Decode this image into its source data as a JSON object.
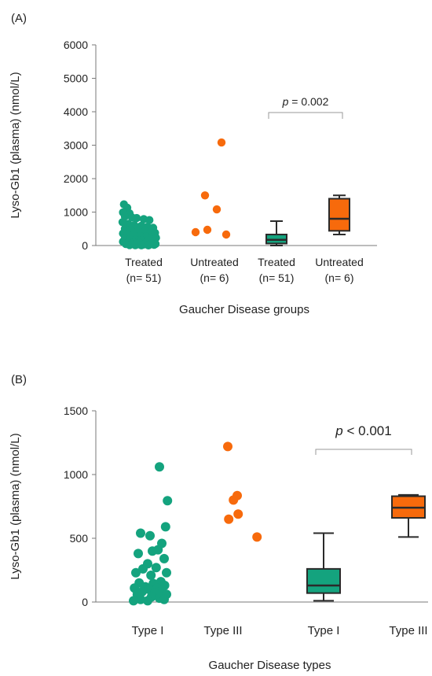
{
  "colors": {
    "treated": "#14a37e",
    "untreated": "#f76a0c",
    "axis": "#7a7a7a",
    "bracket": "#9a9a9a",
    "box_edge": "#2a2a2a"
  },
  "chart_data": [
    {
      "panel_label": "(A)",
      "type": "scatter+box",
      "ylabel": "Lyso-Gb1 (plasma) (nmol/L)",
      "xlabel": "Gaucher Disease groups",
      "ylim": [
        0,
        6000
      ],
      "yticks": [
        0,
        1000,
        2000,
        3000,
        4000,
        5000,
        6000
      ],
      "categories": [
        {
          "line1": "Treated",
          "line2": "(n= 51)"
        },
        {
          "line1": "Untreated",
          "line2": "(n= 6)"
        },
        {
          "line1": "Treated",
          "line2": "(n= 51)"
        },
        {
          "line1": "Untreated",
          "line2": "(n= 6)"
        }
      ],
      "scatter": [
        {
          "group": 0,
          "color_key": "treated",
          "points": [
            [
              -0.42,
              1230
            ],
            [
              -0.35,
              1130
            ],
            [
              -0.44,
              990
            ],
            [
              -0.3,
              960
            ],
            [
              -0.4,
              870
            ],
            [
              -0.25,
              840
            ],
            [
              -0.15,
              820
            ],
            [
              0.0,
              790
            ],
            [
              0.12,
              760
            ],
            [
              -0.45,
              700
            ],
            [
              -0.33,
              650
            ],
            [
              -0.2,
              610
            ],
            [
              -0.05,
              590
            ],
            [
              0.08,
              560
            ],
            [
              0.2,
              530
            ],
            [
              -0.4,
              500
            ],
            [
              -0.28,
              470
            ],
            [
              -0.12,
              450
            ],
            [
              0.03,
              430
            ],
            [
              0.15,
              400
            ],
            [
              0.24,
              380
            ],
            [
              -0.44,
              360
            ],
            [
              -0.34,
              340
            ],
            [
              -0.22,
              310
            ],
            [
              -0.08,
              290
            ],
            [
              0.05,
              270
            ],
            [
              0.18,
              250
            ],
            [
              0.26,
              230
            ],
            [
              -0.4,
              210
            ],
            [
              -0.3,
              190
            ],
            [
              -0.17,
              175
            ],
            [
              -0.04,
              160
            ],
            [
              0.09,
              145
            ],
            [
              0.21,
              130
            ],
            [
              -0.44,
              115
            ],
            [
              -0.33,
              100
            ],
            [
              -0.21,
              90
            ],
            [
              -0.09,
              80
            ],
            [
              0.04,
              70
            ],
            [
              0.16,
              60
            ],
            [
              0.25,
              50
            ],
            [
              -0.38,
              45
            ],
            [
              -0.26,
              40
            ],
            [
              -0.13,
              35
            ],
            [
              0.0,
              30
            ],
            [
              0.12,
              25
            ],
            [
              0.22,
              20
            ],
            [
              -0.3,
              15
            ],
            [
              -0.18,
              10
            ],
            [
              -0.05,
              8
            ],
            [
              0.1,
              5
            ]
          ]
        },
        {
          "group": 1,
          "color_key": "untreated",
          "points": [
            [
              0.15,
              3080
            ],
            [
              -0.2,
              1500
            ],
            [
              0.05,
              1080
            ],
            [
              -0.4,
              400
            ],
            [
              -0.15,
              470
            ],
            [
              0.25,
              330
            ]
          ]
        }
      ],
      "boxes": [
        {
          "group": 2,
          "color_key": "treated",
          "whisker_low": 0,
          "q1": 60,
          "median": 170,
          "q3": 330,
          "whisker_high": 730
        },
        {
          "group": 3,
          "color_key": "untreated",
          "whisker_low": 330,
          "q1": 440,
          "median": 800,
          "q3": 1400,
          "whisker_high": 1500
        }
      ],
      "significance": {
        "text_italic": "p",
        "text_rest": " = 0.002",
        "from": 2,
        "to": 3
      }
    },
    {
      "panel_label": "(B)",
      "type": "scatter+box",
      "ylabel": "Lyso-Gb1 (plasma) (nmol/L)",
      "xlabel": "Gaucher Disease types",
      "ylim": [
        0,
        1500
      ],
      "yticks": [
        0,
        500,
        1000,
        1500
      ],
      "categories": [
        {
          "line1": "Type I",
          "line2": ""
        },
        {
          "line1": "Type III",
          "line2": ""
        },
        {
          "line1": "Type I",
          "line2": ""
        },
        {
          "line1": "Type III",
          "line2": ""
        }
      ],
      "scatter": [
        {
          "group": 0,
          "color_key": "treated",
          "points": [
            [
              0.25,
              1060
            ],
            [
              0.42,
              795
            ],
            [
              0.38,
              590
            ],
            [
              -0.15,
              540
            ],
            [
              0.05,
              520
            ],
            [
              0.3,
              460
            ],
            [
              0.22,
              410
            ],
            [
              0.1,
              400
            ],
            [
              -0.2,
              380
            ],
            [
              0.35,
              340
            ],
            [
              0.0,
              300
            ],
            [
              -0.1,
              260
            ],
            [
              0.18,
              270
            ],
            [
              0.4,
              230
            ],
            [
              -0.25,
              230
            ],
            [
              0.07,
              210
            ],
            [
              0.28,
              160
            ],
            [
              -0.18,
              150
            ],
            [
              0.12,
              145
            ],
            [
              0.36,
              130
            ],
            [
              -0.05,
              120
            ],
            [
              0.2,
              110
            ],
            [
              -0.28,
              110
            ],
            [
              0.02,
              100
            ],
            [
              0.3,
              90
            ],
            [
              -0.12,
              80
            ],
            [
              0.15,
              70
            ],
            [
              0.4,
              60
            ],
            [
              -0.22,
              60
            ],
            [
              0.08,
              40
            ],
            [
              0.25,
              30
            ],
            [
              -0.15,
              20
            ],
            [
              0.35,
              20
            ],
            [
              0.0,
              10
            ],
            [
              -0.3,
              10
            ]
          ]
        },
        {
          "group": 1,
          "color_key": "untreated",
          "points": [
            [
              0.1,
              1220
            ],
            [
              0.3,
              835
            ],
            [
              0.22,
              800
            ],
            [
              0.12,
              650
            ],
            [
              0.32,
              690
            ],
            [
              0.72,
              510
            ]
          ]
        }
      ],
      "boxes": [
        {
          "group": 2,
          "color_key": "treated",
          "whisker_low": 10,
          "q1": 70,
          "median": 130,
          "q3": 260,
          "whisker_high": 540
        },
        {
          "group": 3,
          "color_key": "untreated",
          "whisker_low": 510,
          "q1": 660,
          "median": 740,
          "q3": 830,
          "whisker_high": 840
        }
      ],
      "significance": {
        "text_italic": "p",
        "text_rest": " < 0.001",
        "from": 2,
        "to": 3
      }
    }
  ]
}
